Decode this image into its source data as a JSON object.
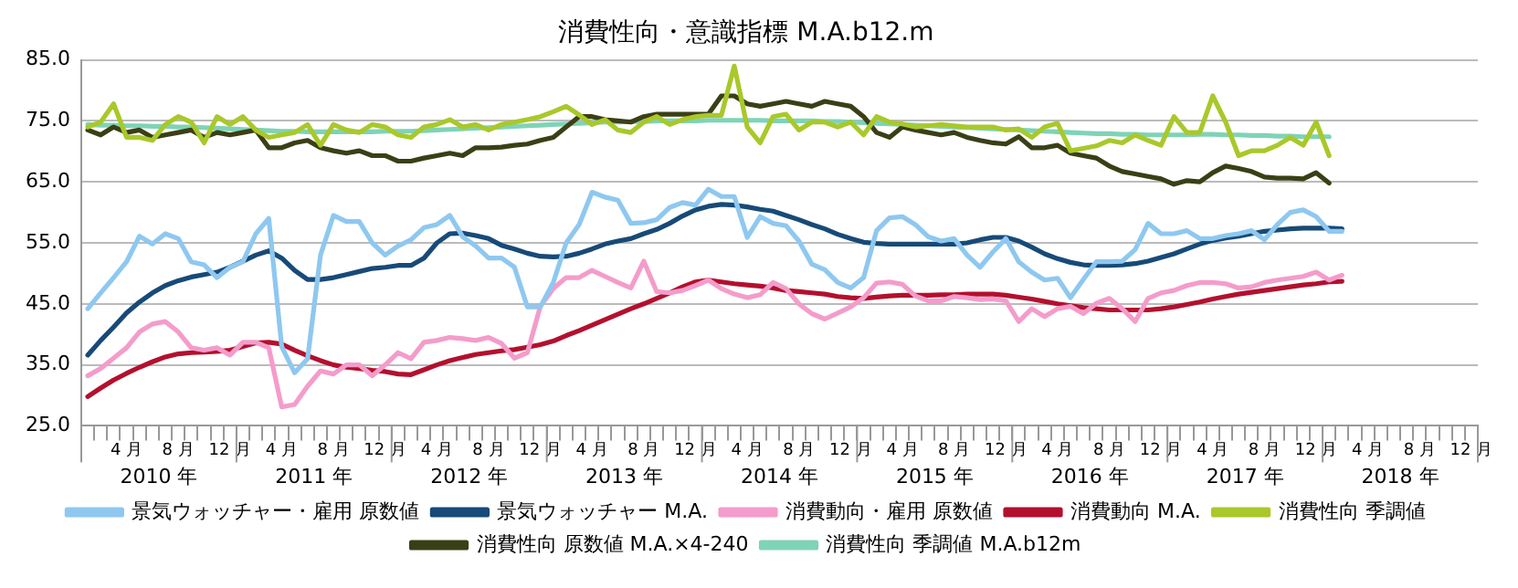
{
  "chart_data": {
    "type": "line",
    "title": "消費性向・意識指標 M.A.b12.m",
    "categories": [
      null,
      null,
      null,
      "4 月",
      null,
      null,
      null,
      "8 月",
      null,
      null,
      null,
      "12 月",
      null,
      null,
      null,
      "4 月",
      null,
      null,
      null,
      "8 月",
      null,
      null,
      null,
      "12 月",
      null,
      null,
      null,
      "4 月",
      null,
      null,
      null,
      "8 月",
      null,
      null,
      null,
      "12 月",
      null,
      null,
      null,
      "4 月",
      null,
      null,
      null,
      "8 月",
      null,
      null,
      null,
      "12 月",
      null,
      null,
      null,
      "4 月",
      null,
      null,
      null,
      "8 月",
      null,
      null,
      null,
      "12 月",
      null,
      null,
      null,
      "4 月",
      null,
      null,
      null,
      "8 月",
      null,
      null,
      null,
      "12 月",
      null,
      null,
      null,
      "4 月",
      null,
      null,
      null,
      "8 月",
      null,
      null,
      null,
      "12 月",
      null,
      null,
      null,
      "4 月",
      null,
      null,
      null,
      "8 月",
      null,
      null,
      null,
      "12 月",
      null,
      null,
      null,
      "4 月",
      null,
      null,
      null,
      "8 月",
      null,
      null,
      null,
      "12 月"
    ],
    "annotations": [
      "2010 年",
      "2011 年",
      "2012 年",
      "2013 年",
      "2014 年",
      "2015 年",
      "2016 年",
      "2017 年",
      "2018 年"
    ],
    "ylim": [
      25,
      85
    ],
    "yticks": [
      {
        "value": 25,
        "label": "25.0"
      },
      {
        "value": 35,
        "label": "35.0"
      },
      {
        "value": 45,
        "label": "45.0"
      },
      {
        "value": 55,
        "label": "55.0"
      },
      {
        "value": 65,
        "label": "65.0"
      },
      {
        "value": 75,
        "label": "75.0"
      },
      {
        "value": 85,
        "label": "85.0"
      }
    ],
    "grid": "y",
    "legend": "bottom",
    "marker": "none",
    "series": [
      {
        "name": "景気ウォッチャー・雇用 原数値",
        "color": "#8ec8f0",
        "values": [
          44.2,
          46.8,
          49.3,
          51.9,
          56.1,
          54.8,
          56.5,
          55.7,
          51.9,
          51.4,
          49.3,
          51,
          51.9,
          56.5,
          59,
          38,
          33.7,
          36,
          53,
          59.5,
          58.5,
          58.5,
          55,
          53,
          54.5,
          55.5,
          57.5,
          58,
          59.5,
          56,
          54.5,
          52.5,
          52.5,
          51,
          44.5,
          44.5,
          48.5,
          55,
          58,
          63.3,
          62.5,
          62,
          58.2,
          58.3,
          58.8,
          60.8,
          61.6,
          61.2,
          63.8,
          62.6,
          62.6,
          55.9,
          59.3,
          58.2,
          57.8,
          55.3,
          51.5,
          50.6,
          48.5,
          47.6,
          49.3,
          57,
          59.1,
          59.3,
          58,
          56,
          55.3,
          55.7,
          53,
          51,
          53.5,
          55.7,
          51.9,
          50.2,
          48.9,
          49.2,
          46,
          49,
          51.9,
          51.9,
          52,
          53.9,
          58.2,
          56.5,
          56.5,
          57,
          55.7,
          55.7,
          56.2,
          56.5,
          57,
          55.5,
          58,
          60,
          60.4,
          59.3,
          56.9,
          56.9,
          null,
          null,
          null,
          null,
          null,
          null,
          null,
          null,
          null,
          null
        ]
      },
      {
        "name": "景気ウォッチャー M.A.",
        "color": "#174a78",
        "values": [
          36.6,
          39,
          41.2,
          43.5,
          45.3,
          46.8,
          48,
          48.8,
          49.4,
          49.8,
          50.2,
          51,
          52,
          53,
          53.7,
          52.5,
          50.5,
          49,
          49,
          49.3,
          49.8,
          50.3,
          50.8,
          51,
          51.3,
          51.3,
          52.5,
          55,
          56.5,
          56.6,
          56.2,
          55.7,
          54.6,
          54,
          53.3,
          52.8,
          52.7,
          52.8,
          53.3,
          54,
          54.8,
          55.3,
          55.7,
          56.5,
          57.2,
          58.2,
          59.4,
          60.4,
          61,
          61.3,
          61.2,
          60.9,
          60.5,
          60.2,
          59.5,
          58.8,
          58,
          57.3,
          56.4,
          55.7,
          55.1,
          54.9,
          54.8,
          54.8,
          54.8,
          54.8,
          54.8,
          54.8,
          55,
          55.5,
          55.9,
          55.9,
          55.3,
          54.3,
          53.2,
          52.4,
          51.8,
          51.4,
          51.3,
          51.3,
          51.4,
          51.6,
          52,
          52.6,
          53.2,
          54,
          54.8,
          55.4,
          55.8,
          56.1,
          56.5,
          56.9,
          57.1,
          57.3,
          57.4,
          57.4,
          57.4,
          57.3,
          null,
          null,
          null,
          null,
          null,
          null,
          null,
          null,
          null,
          null
        ]
      },
      {
        "name": "消費動向・雇用 原数値",
        "color": "#f49ccb",
        "values": [
          33.2,
          34.4,
          36.1,
          37.8,
          40.4,
          41.7,
          42.1,
          40.4,
          37.8,
          37.4,
          37.8,
          36.6,
          38.7,
          38.7,
          37.8,
          28.1,
          28.5,
          31.5,
          34,
          33.5,
          35,
          35,
          33.2,
          35,
          37,
          36,
          38.7,
          39,
          39.5,
          39.3,
          39,
          39.5,
          38.5,
          36.1,
          37,
          44.6,
          47.5,
          49.3,
          49.3,
          50.5,
          49.5,
          48.5,
          47.6,
          52,
          47,
          46.8,
          47.2,
          48,
          48.9,
          47.5,
          46.6,
          46,
          46.5,
          48.5,
          47.5,
          45,
          43.4,
          42.5,
          43.5,
          44.5,
          46,
          48.4,
          48.6,
          48.2,
          46.3,
          45.5,
          45.5,
          46.2,
          46,
          45.7,
          45.8,
          45.5,
          42.1,
          44.2,
          42.9,
          44.2,
          44.6,
          43.4,
          45.1,
          45.9,
          44.2,
          42.1,
          45.9,
          46.8,
          47.2,
          48,
          48.5,
          48.5,
          48.3,
          47.6,
          47.8,
          48.5,
          48.9,
          49.2,
          49.5,
          50.2,
          48.9,
          49.7,
          null,
          null,
          null,
          null,
          null,
          null,
          null,
          null,
          null,
          null
        ]
      },
      {
        "name": "消費動向 M.A.",
        "color": "#b3102e",
        "values": [
          29.8,
          31.2,
          32.5,
          33.6,
          34.6,
          35.5,
          36.3,
          36.8,
          37,
          37.1,
          37.2,
          37.4,
          38,
          38.6,
          38.7,
          38.4,
          37.4,
          36.5,
          35.7,
          35,
          34.6,
          34.4,
          34.1,
          33.9,
          33.5,
          33.4,
          34.2,
          35,
          35.7,
          36.2,
          36.7,
          37,
          37.3,
          37.5,
          37.9,
          38.3,
          38.9,
          39.8,
          40.6,
          41.5,
          42.4,
          43.3,
          44.2,
          45,
          45.9,
          46.8,
          47.8,
          48.6,
          48.9,
          48.6,
          48.3,
          48.1,
          47.9,
          47.6,
          47.2,
          47,
          46.8,
          46.6,
          46.2,
          46,
          45.9,
          46.1,
          46.3,
          46.4,
          46.4,
          46.4,
          46.5,
          46.5,
          46.6,
          46.6,
          46.6,
          46.4,
          46.1,
          45.8,
          45.4,
          45,
          44.7,
          44.4,
          44.2,
          44,
          44,
          44,
          44,
          44.2,
          44.5,
          44.9,
          45.3,
          45.8,
          46.2,
          46.6,
          46.9,
          47.2,
          47.5,
          47.8,
          48.1,
          48.3,
          48.6,
          48.7,
          null,
          null,
          null,
          null,
          null,
          null,
          null,
          null,
          null,
          null
        ]
      },
      {
        "name": "消費性向 季調値",
        "color": "#a9c82a",
        "values": [
          74,
          74.8,
          77.8,
          72.3,
          72.3,
          71.8,
          74.4,
          75.7,
          74.8,
          71.4,
          75.7,
          74.4,
          75.7,
          73.5,
          72.3,
          72.7,
          73.1,
          74.4,
          71,
          74.4,
          73.5,
          73.1,
          74.4,
          74,
          72.7,
          72.3,
          74,
          74.4,
          75.2,
          74,
          74.4,
          73.5,
          74.4,
          74.8,
          75.2,
          75.7,
          76.5,
          77.4,
          76,
          74.4,
          75.2,
          73.5,
          73.1,
          74.8,
          75.7,
          74.4,
          75.2,
          75.7,
          75.9,
          75.9,
          84,
          74,
          71.4,
          75.7,
          76.1,
          73.5,
          74.8,
          74.8,
          74,
          74.8,
          72.7,
          75.7,
          74.8,
          74.5,
          74,
          74.2,
          74.4,
          74.2,
          74,
          74,
          74,
          73.5,
          73.7,
          72.3,
          74,
          74.6,
          70.1,
          70.5,
          70.9,
          71.8,
          71.4,
          72.7,
          71.8,
          71,
          75.7,
          73.1,
          73.1,
          79.1,
          74.8,
          69.3,
          70.1,
          70.1,
          71,
          72.3,
          71,
          74.8,
          69.3,
          null,
          null,
          null,
          null,
          null,
          null,
          null,
          null,
          null,
          null,
          null
        ]
      },
      {
        "name": "消費性向 原数値 M.A.×4-240",
        "color": "#3b3f16",
        "values": [
          73.5,
          72.7,
          74,
          73.1,
          73.5,
          72.3,
          72.7,
          73.1,
          73.5,
          72.3,
          73.1,
          72.7,
          73.1,
          73.5,
          70.6,
          70.6,
          71.4,
          71.8,
          70.6,
          70.1,
          69.7,
          70.1,
          69.3,
          69.3,
          68.4,
          68.4,
          68.9,
          69.3,
          69.7,
          69.3,
          70.6,
          70.6,
          70.7,
          71,
          71.2,
          71.8,
          72.3,
          74,
          75.7,
          75.7,
          75.2,
          75,
          74.8,
          75.7,
          76.1,
          76.1,
          76.1,
          76.1,
          76.1,
          79.1,
          79.1,
          77.8,
          77.4,
          77.8,
          78.2,
          77.8,
          77.4,
          78.2,
          77.8,
          77.4,
          75.7,
          73.1,
          72.3,
          74,
          73.5,
          73.1,
          72.7,
          73.1,
          72.3,
          71.8,
          71.4,
          71.2,
          72.4,
          70.6,
          70.6,
          71,
          69.7,
          69.3,
          68.9,
          67.6,
          66.7,
          66.3,
          65.9,
          65.5,
          64.6,
          65.2,
          65,
          66.5,
          67.6,
          67.2,
          66.7,
          65.8,
          65.6,
          65.6,
          65.5,
          66.5,
          64.8,
          null,
          null,
          null,
          null,
          null,
          null,
          null,
          null,
          null,
          null,
          null
        ]
      },
      {
        "name": "消費性向 季調値 M.A.b12m",
        "color": "#7fd3b6",
        "values": [
          74.4,
          74.3,
          74.3,
          74.2,
          74.2,
          74.1,
          74.1,
          74,
          74,
          73.9,
          73.8,
          73.7,
          73.6,
          73.5,
          73.4,
          73.3,
          73.3,
          73.2,
          73.2,
          73.2,
          73.2,
          73.2,
          73.2,
          73.3,
          73.3,
          73.3,
          73.4,
          73.5,
          73.6,
          73.7,
          73.8,
          73.9,
          74,
          74.1,
          74.2,
          74.3,
          74.4,
          74.5,
          74.6,
          74.7,
          74.8,
          74.8,
          74.9,
          74.9,
          75,
          75,
          75,
          75,
          75.1,
          75.1,
          75.1,
          75.1,
          75.1,
          75,
          75,
          75,
          75,
          74.9,
          74.9,
          74.8,
          74.7,
          74.6,
          74.5,
          74.4,
          74.3,
          74.2,
          74.1,
          74,
          73.9,
          73.8,
          73.7,
          73.6,
          73.5,
          73.4,
          73.3,
          73.2,
          73.1,
          73,
          72.9,
          72.9,
          72.8,
          72.8,
          72.7,
          72.7,
          72.7,
          72.7,
          72.8,
          72.8,
          72.7,
          72.7,
          72.6,
          72.6,
          72.5,
          72.5,
          72.4,
          72.4,
          72.4,
          null,
          null,
          null,
          null,
          null,
          null,
          null,
          null,
          null,
          null,
          null
        ]
      }
    ]
  }
}
